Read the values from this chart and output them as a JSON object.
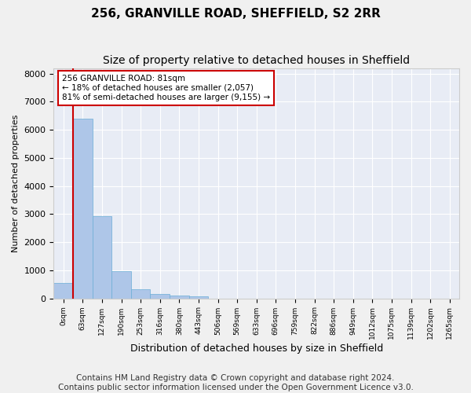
{
  "title_line1": "256, GRANVILLE ROAD, SHEFFIELD, S2 2RR",
  "title_line2": "Size of property relative to detached houses in Sheffield",
  "xlabel": "Distribution of detached houses by size in Sheffield",
  "ylabel": "Number of detached properties",
  "bar_values": [
    540,
    6410,
    2920,
    960,
    330,
    155,
    100,
    65,
    0,
    0,
    0,
    0,
    0,
    0,
    0,
    0,
    0,
    0,
    0,
    0,
    0
  ],
  "categories": [
    "0sqm",
    "63sqm",
    "127sqm",
    "190sqm",
    "253sqm",
    "316sqm",
    "380sqm",
    "443sqm",
    "506sqm",
    "569sqm",
    "633sqm",
    "696sqm",
    "759sqm",
    "822sqm",
    "886sqm",
    "949sqm",
    "1012sqm",
    "1075sqm",
    "1139sqm",
    "1202sqm",
    "1265sqm"
  ],
  "bar_color": "#aec6e8",
  "bar_edge_color": "#6baed6",
  "vline_color": "#cc0000",
  "annotation_text": "256 GRANVILLE ROAD: 81sqm\n← 18% of detached houses are smaller (2,057)\n81% of semi-detached houses are larger (9,155) →",
  "annotation_box_color": "#ffffff",
  "annotation_border_color": "#cc0000",
  "ylim": [
    0,
    8200
  ],
  "yticks": [
    0,
    1000,
    2000,
    3000,
    4000,
    5000,
    6000,
    7000,
    8000
  ],
  "background_color": "#e8ecf5",
  "grid_color": "#ffffff",
  "footer_line1": "Contains HM Land Registry data © Crown copyright and database right 2024.",
  "footer_line2": "Contains public sector information licensed under the Open Government Licence v3.0.",
  "title_fontsize": 11,
  "subtitle_fontsize": 10,
  "footer_fontsize": 7.5
}
